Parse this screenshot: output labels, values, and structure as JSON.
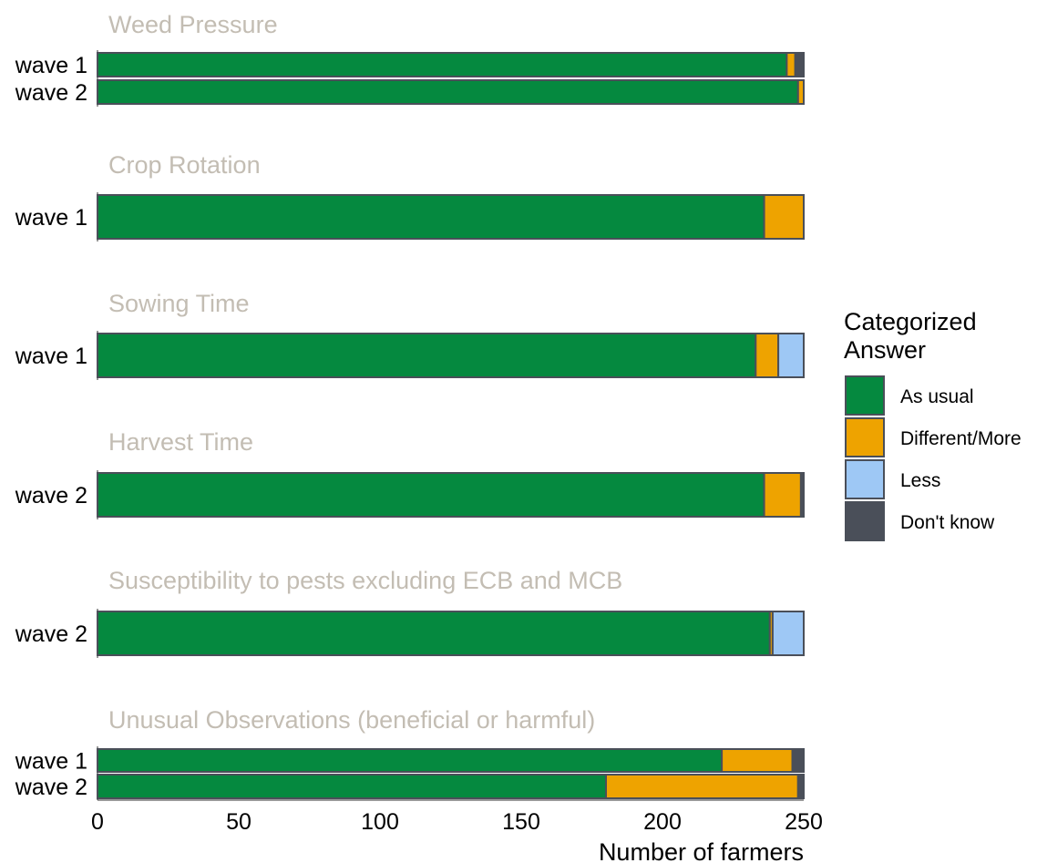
{
  "chart_data": {
    "type": "bar",
    "orientation": "horizontal",
    "stacked": true,
    "xlabel": "Number of farmers",
    "xlim": [
      0,
      250
    ],
    "xticks": [
      0,
      50,
      100,
      150,
      200,
      250
    ],
    "grid": false,
    "legend": {
      "title_lines": [
        "Categorized",
        "Answer"
      ],
      "placement": "right",
      "entries": [
        {
          "name": "As usual",
          "color": "#05893f"
        },
        {
          "name": "Different/More",
          "color": "#eea300"
        },
        {
          "name": "Less",
          "color": "#9ec8f5"
        },
        {
          "name": "Don't know",
          "color": "#4a4f59"
        }
      ]
    },
    "panels": [
      {
        "title": "Weed Pressure",
        "rows": [
          {
            "label": "wave 1",
            "values": [
              244,
              3,
              0,
              3
            ]
          },
          {
            "label": "wave 2",
            "values": [
              248,
              2,
              0,
              0
            ]
          }
        ]
      },
      {
        "title": "Crop Rotation",
        "rows": [
          {
            "label": "wave 1",
            "values": [
              236,
              14,
              0,
              0
            ]
          }
        ]
      },
      {
        "title": "Sowing Time",
        "rows": [
          {
            "label": "wave 1",
            "values": [
              233,
              8,
              9,
              0
            ]
          }
        ]
      },
      {
        "title": "Harvest Time",
        "rows": [
          {
            "label": "wave 2",
            "values": [
              236,
              13,
              0,
              1
            ]
          }
        ]
      },
      {
        "title": "Susceptibility to pests excluding ECB and MCB",
        "rows": [
          {
            "label": "wave 2",
            "values": [
              238,
              1,
              11,
              0
            ]
          }
        ]
      },
      {
        "title": "Unusual Observations (beneficial or harmful)",
        "rows": [
          {
            "label": "wave 1",
            "values": [
              221,
              25,
              0,
              4
            ]
          },
          {
            "label": "wave 2",
            "values": [
              180,
              68,
              0,
              2
            ]
          }
        ]
      }
    ]
  }
}
